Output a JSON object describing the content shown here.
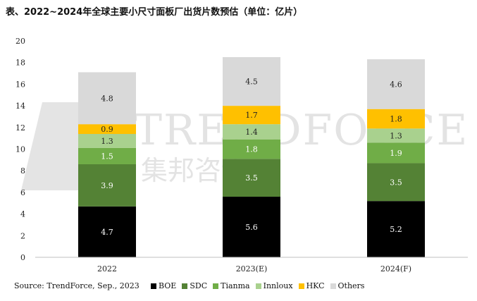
{
  "title": "表、2022~2024年全球主要小尺寸面板厂出货片数预估（单位：亿片）",
  "source": "Source: TrendForce, Sep., 2023",
  "watermark": {
    "text": "TRENDFORCE",
    "subtext": "集邦咨询"
  },
  "chart_data": {
    "type": "bar",
    "stacked": true,
    "categories": [
      "2022",
      "2023(E)",
      "2024(F)"
    ],
    "series": [
      {
        "name": "BOE",
        "color": "#000000",
        "label_color": "#ffffff",
        "values": [
          4.7,
          5.6,
          5.2
        ]
      },
      {
        "name": "SDC",
        "color": "#548235",
        "label_color": "#ffffff",
        "values": [
          3.9,
          3.5,
          3.5
        ]
      },
      {
        "name": "Tianma",
        "color": "#70ad47",
        "label_color": "#ffffff",
        "values": [
          1.5,
          1.8,
          1.9
        ]
      },
      {
        "name": "Innloux",
        "color": "#a9d18e",
        "label_color": "#222222",
        "values": [
          1.3,
          1.4,
          1.3
        ]
      },
      {
        "name": "HKC",
        "color": "#ffc000",
        "label_color": "#222222",
        "values": [
          0.9,
          1.7,
          1.8
        ]
      },
      {
        "name": "Others",
        "color": "#d9d9d9",
        "label_color": "#222222",
        "values": [
          4.8,
          4.5,
          4.6
        ]
      }
    ],
    "yticks": [
      0,
      2,
      4,
      6,
      8,
      10,
      12,
      14,
      16,
      18,
      20
    ],
    "ylim": [
      0,
      20
    ],
    "grid": false,
    "legend_position": "bottom"
  }
}
